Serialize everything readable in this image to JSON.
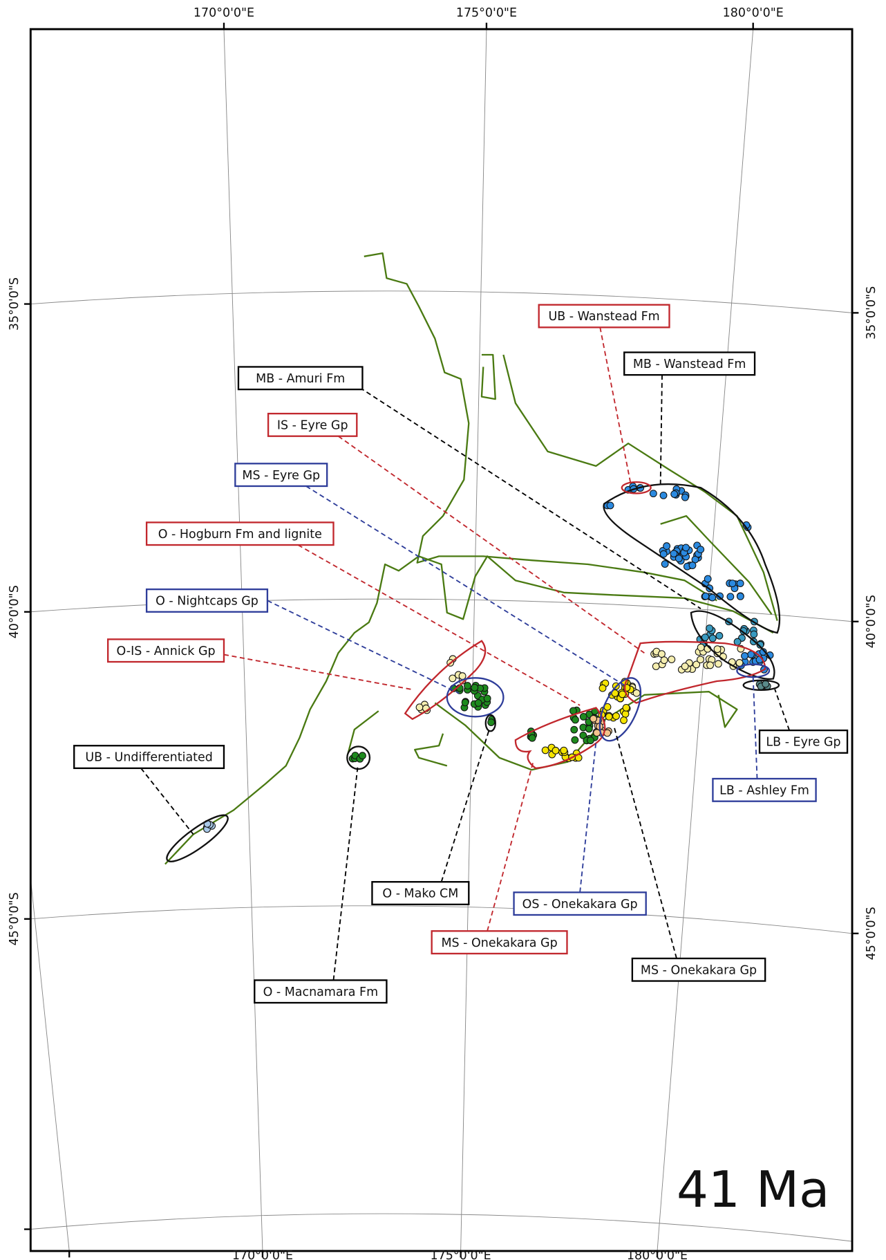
{
  "map": {
    "title": "41 Ma",
    "graticule": {
      "top": [
        "170°0'0\"E",
        "175°0'0\"E",
        "180°0'0\"E"
      ],
      "bottom": [
        "170°0'0\"E",
        "175°0'0\"E",
        "180°0'0\"E"
      ],
      "left": [
        "35°0'0\"S",
        "40°0'0\"S",
        "45°0'0\"S"
      ],
      "right": [
        "35°0'0\"S",
        "40°0'0\"S",
        "45°0'0\"S"
      ]
    },
    "labels": [
      {
        "text": "UB - Wanstead Fm",
        "color": "#c1272d"
      },
      {
        "text": "MB - Wanstead Fm",
        "color": "#000000"
      },
      {
        "text": "MB - Amuri Fm",
        "color": "#000000"
      },
      {
        "text": "IS - Eyre Gp",
        "color": "#c1272d"
      },
      {
        "text": "MS - Eyre Gp",
        "color": "#2e3d9a"
      },
      {
        "text": "O - Hogburn Fm and lignite",
        "color": "#c1272d"
      },
      {
        "text": "O - Nightcaps Gp",
        "color": "#2e3d9a"
      },
      {
        "text": "O-IS - Annick Gp",
        "color": "#c1272d"
      },
      {
        "text": "UB - Undifferentiated",
        "color": "#000000"
      },
      {
        "text": "LB - Eyre Gp",
        "color": "#000000"
      },
      {
        "text": "LB - Ashley Fm",
        "color": "#2e3d9a"
      },
      {
        "text": "O - Mako CM",
        "color": "#000000"
      },
      {
        "text": "OS - Onekakara Gp",
        "color": "#2e3d9a"
      },
      {
        "text": "MS - Onekakara Gp",
        "color": "#c1272d"
      },
      {
        "text": "MS - Onekakara Gp",
        "color": "#000000"
      },
      {
        "text": "O - Macnamara Fm",
        "color": "#000000"
      }
    ]
  }
}
